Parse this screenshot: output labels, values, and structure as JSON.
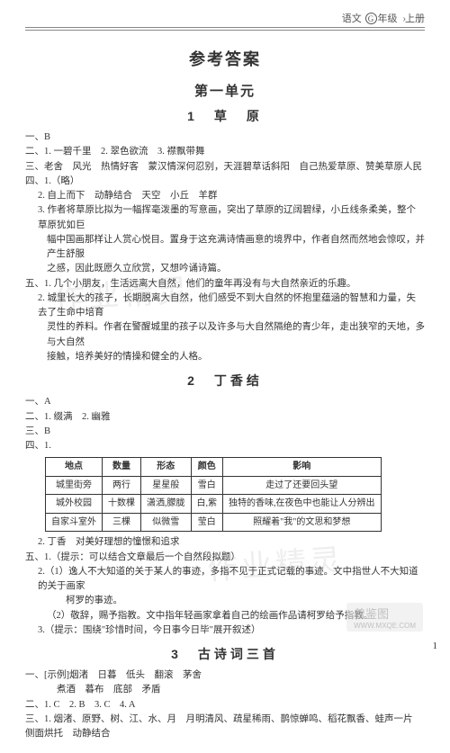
{
  "header": {
    "subject": "语文",
    "grade_circled": "G",
    "grade_suffix": "年级",
    "volume": "上册"
  },
  "main_title": "参考答案",
  "unit_title": "第一单元",
  "lessons": [
    {
      "title": "1　草　原",
      "lines": [
        {
          "cls": "q-line indent1",
          "text": "一、B"
        },
        {
          "cls": "q-line indent1",
          "text": "二、1. 一碧千里　2. 翠色欲流　3. 襟飘带舞"
        },
        {
          "cls": "q-line indent1",
          "text": "三、老舍　风光　热情好客　蒙汉情深何忍别，天涯碧草话斜阳　自己热爱草原、赞美草原人民"
        },
        {
          "cls": "q-line indent1",
          "text": "四、1.（略）"
        },
        {
          "cls": "q-line indent2",
          "text": "2. 自上而下　动静结合　天空　小丘　羊群"
        },
        {
          "cls": "q-line indent2",
          "text": "3. 作者将草原比拟为一幅挥毫泼墨的写意画，突出了草原的辽阔碧绿，小丘线条柔美，整个草原犹如巨"
        },
        {
          "cls": "q-line cont",
          "text": "幅中国画那样让人赏心悦目。置身于这充满诗情画意的境界中，作者自然而然地会惊叹，并产生舒服"
        },
        {
          "cls": "q-line cont",
          "text": "之感，因此既愿久立欣赏，又想吟诵诗篇。"
        },
        {
          "cls": "q-line indent1",
          "text": "五、1. 几个小朋友，生活远离大自然，他们的童年再没有与大自然亲近的乐趣。"
        },
        {
          "cls": "q-line indent2",
          "text": "2. 城里长大的孩子，长期脱离大自然，他们感受不到大自然的怀抱里蕴涵的智慧和力量，失去了生命中培育"
        },
        {
          "cls": "q-line cont",
          "text": "灵性的养料。作者在警醒城里的孩子以及许多与大自然隔绝的青少年，走出狭窄的天地，多与大自然"
        },
        {
          "cls": "q-line cont",
          "text": "接触，培养美好的情操和健全的人格。"
        }
      ]
    },
    {
      "title": "2　丁香结",
      "pre_lines": [
        {
          "cls": "q-line indent1",
          "text": "一、A"
        },
        {
          "cls": "q-line indent1",
          "text": "二、1. 缀满　2. 幽雅"
        },
        {
          "cls": "q-line indent1",
          "text": "三、B"
        },
        {
          "cls": "q-line indent1",
          "text": "四、1."
        }
      ],
      "table": {
        "headers": [
          "地点",
          "数量",
          "形态",
          "颜色",
          "影响"
        ],
        "rows": [
          [
            "城里街旁",
            "两行",
            "星星般",
            "雪白",
            "走过了还要回头望"
          ],
          [
            "城外校园",
            "十数棵",
            "潇洒,朦胧",
            "白,紫",
            "独特的香味,在夜色中也能让人分辨出"
          ],
          [
            "自家斗室外",
            "三棵",
            "似微雪",
            "莹白",
            "照耀着\"我\"的文思和梦想"
          ]
        ]
      },
      "post_lines": [
        {
          "cls": "q-line indent2",
          "text": "2. 丁香　对美好理想的憧憬和追求"
        },
        {
          "cls": "q-line indent1",
          "text": "五、1.（提示：可以结合文章最后一个自然段拟题）"
        },
        {
          "cls": "q-line indent2",
          "text": "2.（1）逸人不大知道的关于某人的事迹，多指不见于正式记载的事迹。文中指世人不大知道的关于画家"
        },
        {
          "cls": "q-line cont",
          "text": "　　柯罗的事迹。"
        },
        {
          "cls": "q-line cont",
          "text": "（2）敬辞，赐予指教。文中指年轻画家拿着自己的绘画作品请柯罗给予指教。"
        },
        {
          "cls": "q-line indent2",
          "text": "3.（提示：围绕\"珍惜时间，今日事今日毕\"展开叙述）"
        }
      ]
    },
    {
      "title": "3　古诗词三首",
      "lines": [
        {
          "cls": "q-line indent1",
          "text": "一、[示例]烟渚　日暮　低头　翻滚　茅舍"
        },
        {
          "cls": "q-line indent2",
          "text": "　　煮酒　暮布　底部　矛盾"
        },
        {
          "cls": "q-line indent1",
          "text": "二、1. C　2. B　3. C　4. A"
        },
        {
          "cls": "q-line indent1",
          "text": "三、1. 烟渚、原野、树、江、水、月　月明清风、疏星稀雨、鹊惊蝉鸣、稻花飘香、蛙声一片　侧面烘托　动静结合"
        }
      ]
    }
  ],
  "page_number": "1",
  "watermarks": {
    "wm1": "作业精灵",
    "wm2": "作业精灵",
    "footer_main": "曾鉴图",
    "footer_sub": "WWW.MXQE.COM"
  }
}
